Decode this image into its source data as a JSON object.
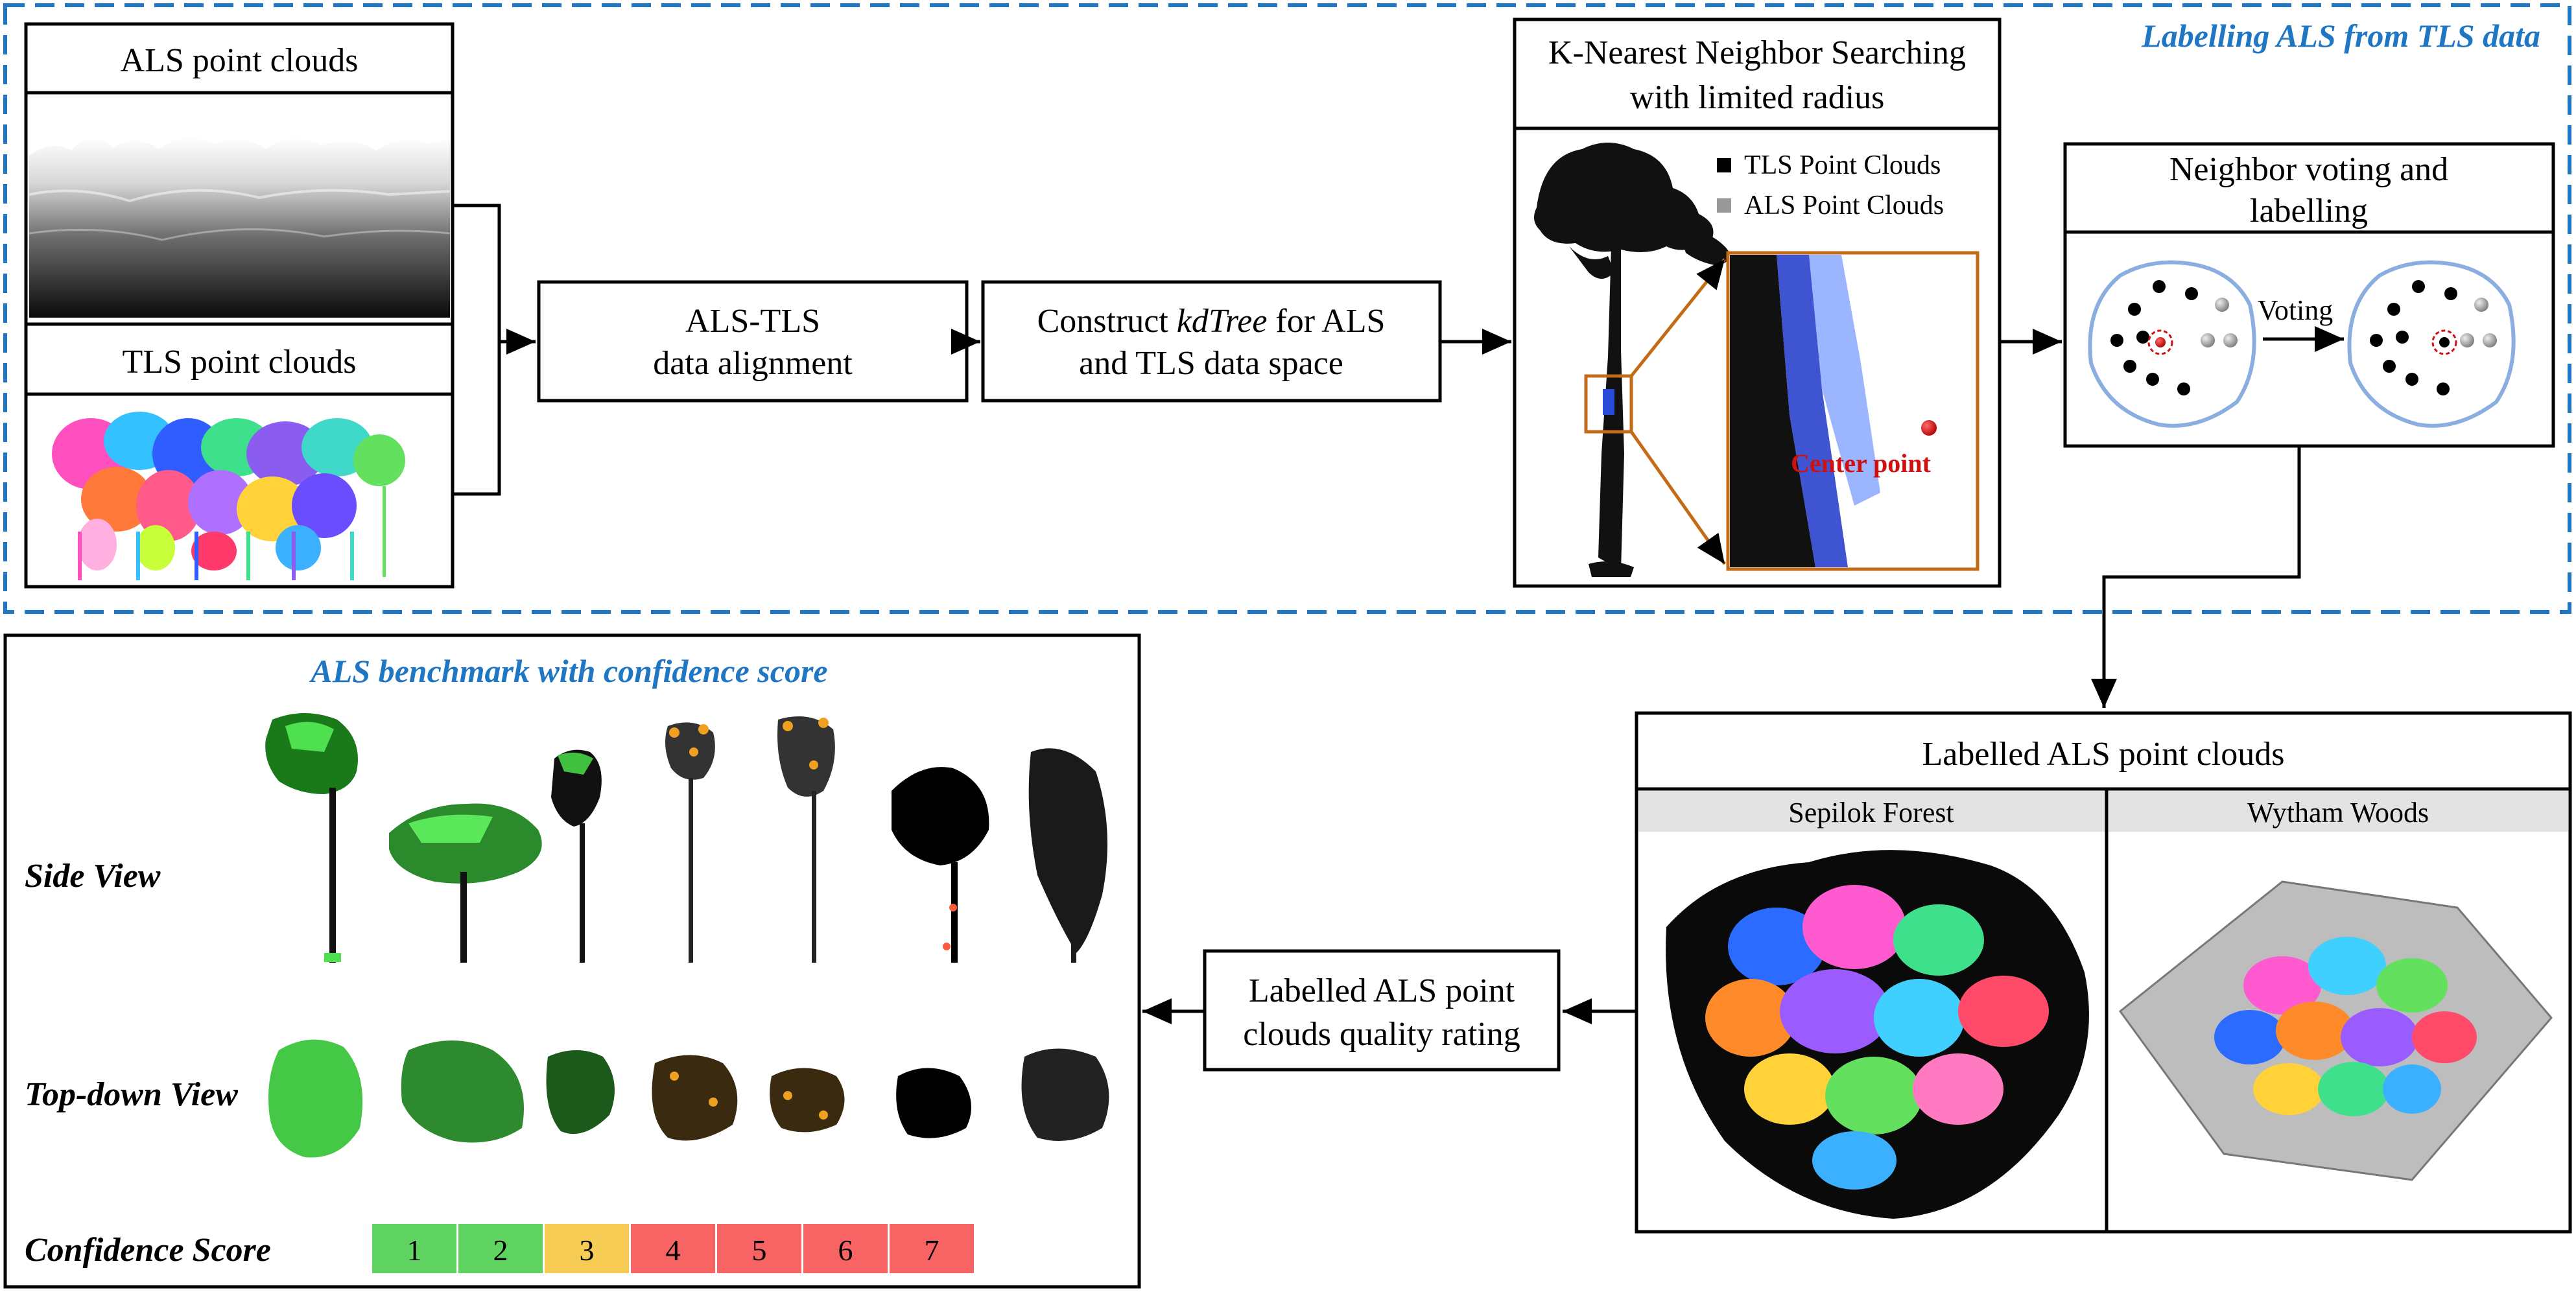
{
  "top_section": {
    "title": "Labelling ALS from TLS data",
    "als_input_label": "ALS point clouds",
    "tls_input_label": "TLS point clouds",
    "alignment_line1": "ALS-TLS",
    "alignment_line2": "data alignment",
    "kdtree_line1_prefix": "Construct ",
    "kdtree_line1_italic": "kdTree",
    "kdtree_line1_suffix": " for ALS",
    "kdtree_line2": "and TLS data space",
    "knn_line1": "K-Nearest Neighbor Searching",
    "knn_line2": "with limited radius",
    "legend_tls": "TLS Point Clouds",
    "legend_als": "ALS Point Clouds",
    "center_point_label": "Center point",
    "voting_title_line1": "Neighbor voting and",
    "voting_title_line2": "labelling",
    "voting_arrow_label": "Voting"
  },
  "labelled_section": {
    "title": "Labelled ALS point clouds",
    "left_site": "Sepilok Forest",
    "right_site": "Wytham Woods"
  },
  "quality_box": {
    "line1": "Labelled ALS point",
    "line2": "clouds quality rating"
  },
  "benchmark": {
    "title": "ALS benchmark with confidence score",
    "side_view_label": "Side View",
    "top_view_label": "Top-down View",
    "confidence_label": "Confidence Score",
    "scores": [
      "1",
      "2",
      "3",
      "4",
      "5",
      "6",
      "7"
    ]
  },
  "colors": {
    "accent_blue": "#1f77c4",
    "score_green": "#5fd35f",
    "score_yellow": "#f7cc55",
    "score_red": "#f86464",
    "center_red": "#d01010"
  }
}
